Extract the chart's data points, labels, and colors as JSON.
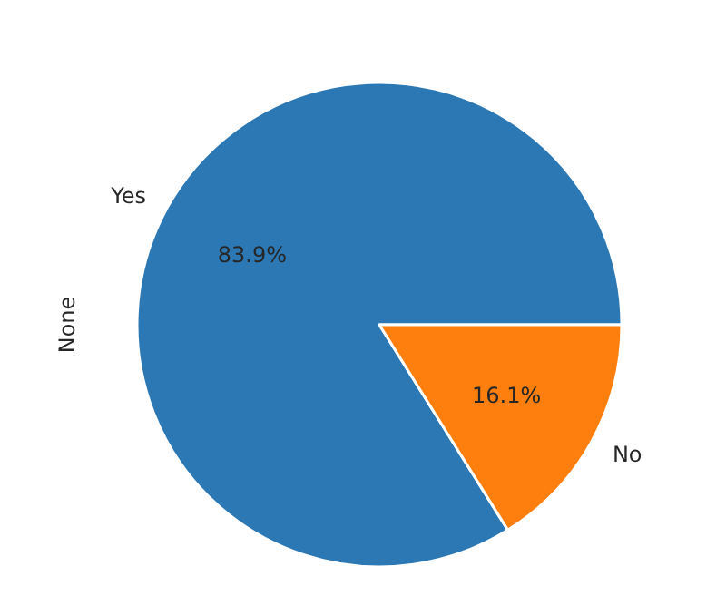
{
  "chart_data": {
    "type": "pie",
    "ylabel": "None",
    "categories": [
      "Yes",
      "No"
    ],
    "values": [
      83.9,
      16.1
    ],
    "colors": [
      "#2c78b4",
      "#ff7f0e"
    ],
    "value_labels": [
      "83.9%",
      "16.1%"
    ]
  }
}
